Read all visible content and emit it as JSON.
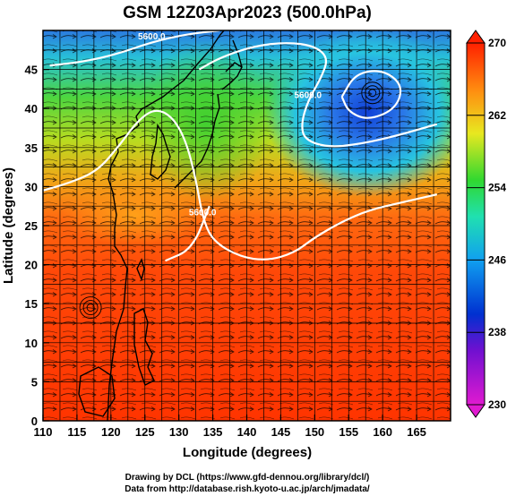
{
  "chart_data": {
    "type": "heatmap",
    "title": "GSM 12Z03Apr2023 (500.0hPa)",
    "xlabel": "Longitude (degrees)",
    "ylabel": "Latitude  (degrees)",
    "xlim": [
      110,
      170
    ],
    "ylim": [
      0,
      50
    ],
    "x_ticks": [
      110,
      115,
      120,
      125,
      130,
      135,
      140,
      145,
      150,
      155,
      160,
      165
    ],
    "y_ticks": [
      0,
      5,
      10,
      15,
      20,
      25,
      30,
      35,
      40,
      45
    ],
    "grid": true,
    "colorbar": {
      "range": [
        230,
        270
      ],
      "ticks": [
        230,
        238,
        246,
        254,
        262,
        270
      ],
      "placement": "right"
    },
    "contours": [
      {
        "value": "5600.0",
        "points": [
          [
            110,
            29.5
          ],
          [
            114,
            30.5
          ],
          [
            118,
            32
          ],
          [
            121,
            35
          ],
          [
            124,
            38.5
          ],
          [
            126.5,
            40
          ],
          [
            129,
            39
          ],
          [
            131,
            36
          ],
          [
            132.5,
            31
          ],
          [
            133.5,
            26
          ],
          [
            135,
            23
          ],
          [
            139,
            21
          ],
          [
            143,
            20.5
          ],
          [
            147,
            21.5
          ],
          [
            150,
            23.5
          ],
          [
            154,
            25.5
          ],
          [
            158,
            27
          ],
          [
            163,
            28
          ],
          [
            168,
            29
          ]
        ]
      },
      {
        "value": "5600.0",
        "points": [
          [
            133,
            45
          ],
          [
            136,
            46.5
          ],
          [
            141,
            48
          ],
          [
            146,
            48.5
          ],
          [
            150,
            48
          ],
          [
            152,
            46.5
          ],
          [
            151,
            44
          ],
          [
            149,
            41
          ],
          [
            148,
            38
          ],
          [
            148.5,
            36
          ],
          [
            152,
            35
          ],
          [
            157,
            35.5
          ],
          [
            162,
            36.5
          ],
          [
            168,
            38
          ]
        ]
      },
      {
        "value": "5600.0",
        "points": [
          [
            111,
            45.5
          ],
          [
            116,
            46
          ],
          [
            121,
            47
          ],
          [
            126,
            48.5
          ],
          [
            131,
            49.5
          ],
          [
            136,
            50
          ]
        ]
      },
      {
        "value": "",
        "points": [
          [
            128,
            20.5
          ],
          [
            132,
            22
          ],
          [
            134.5,
            27.5
          ]
        ]
      },
      {
        "value": "",
        "points": [
          [
            154,
            41.5
          ],
          [
            156,
            44.5
          ],
          [
            160,
            45
          ],
          [
            163,
            43
          ],
          [
            162,
            40
          ],
          [
            158,
            38.5
          ],
          [
            155,
            39.5
          ],
          [
            154,
            41.5
          ]
        ]
      }
    ],
    "cyclones": [
      [
        158.5,
        42
      ],
      [
        117,
        14.5
      ]
    ]
  },
  "credits": {
    "line1": "Drawing by DCL (https://www.gfd-dennou.org/library/dcl/)",
    "line2": "Data from http://database.rish.kyoto-u.ac.jp/arch/jmadata/"
  },
  "colors": {
    "cold": "#0030d0",
    "cool": "#10c8e8",
    "mid": "#30d830",
    "warm": "#e8e820",
    "hot": "#ff3000",
    "contour": "#ffffff",
    "grid": "#000000"
  }
}
